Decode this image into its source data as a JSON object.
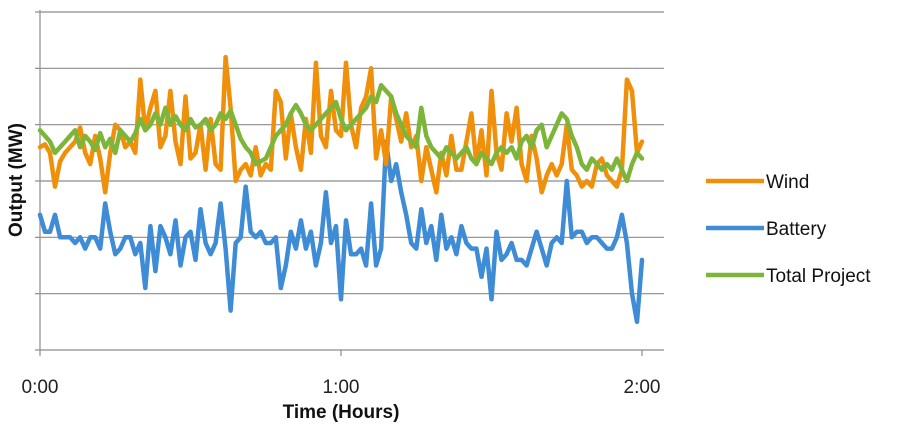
{
  "chart_data": {
    "type": "line",
    "xlabel": "Time (Hours)",
    "ylabel": "Output (MW)",
    "x_range_minutes": [
      0,
      120
    ],
    "x_ticks": [
      {
        "minute": 0,
        "label": "0:00"
      },
      {
        "minute": 60,
        "label": "1:00"
      },
      {
        "minute": 120,
        "label": "2:00"
      }
    ],
    "ylim": [
      0,
      6
    ],
    "y_gridlines": [
      1,
      2,
      3,
      4,
      5,
      6
    ],
    "y_tick_labels_shown": false,
    "grid": true,
    "legend_position": "right",
    "series": [
      {
        "name": "Wind",
        "color": "#F0900A",
        "x": [
          0,
          1,
          2,
          3,
          4,
          5,
          6,
          7,
          8,
          9,
          10,
          11,
          12,
          13,
          14,
          15,
          16,
          17,
          18,
          19,
          20,
          21,
          22,
          23,
          24,
          25,
          26,
          27,
          28,
          29,
          30,
          31,
          32,
          33,
          34,
          35,
          36,
          37,
          38,
          39,
          40,
          41,
          42,
          43,
          44,
          45,
          46,
          47,
          48,
          49,
          50,
          51,
          52,
          53,
          54,
          55,
          56,
          57,
          58,
          59,
          60,
          61,
          62,
          63,
          64,
          65,
          66,
          67,
          68,
          69,
          70,
          71,
          72,
          73,
          74,
          75,
          76,
          77,
          78,
          79,
          80,
          81,
          82,
          83,
          84,
          85,
          86,
          87,
          88,
          89,
          90,
          91,
          92,
          93,
          94,
          95,
          96,
          97,
          98,
          99,
          100,
          101,
          102,
          103,
          104,
          105,
          106,
          107,
          108,
          109,
          110,
          111,
          112,
          113,
          114,
          115,
          116,
          117,
          118,
          119,
          120
        ],
        "values": [
          3.6,
          3.65,
          3.5,
          2.9,
          3.35,
          3.5,
          3.6,
          3.7,
          3.95,
          3.5,
          3.3,
          3.8,
          3.4,
          2.8,
          3.5,
          4.0,
          3.9,
          3.6,
          3.7,
          3.5,
          4.8,
          3.9,
          4.3,
          4.6,
          3.6,
          3.8,
          4.6,
          3.7,
          3.3,
          4.5,
          3.4,
          3.5,
          4.0,
          3.2,
          4.1,
          3.3,
          3.2,
          5.2,
          4.3,
          3.0,
          3.2,
          3.3,
          3.1,
          3.6,
          3.1,
          3.3,
          3.2,
          4.6,
          4.4,
          3.4,
          4.2,
          3.6,
          3.2,
          4.1,
          3.5,
          5.1,
          3.8,
          3.6,
          4.6,
          3.9,
          3.8,
          5.1,
          4.0,
          3.6,
          4.3,
          4.5,
          5.0,
          3.4,
          3.9,
          3.3,
          4.5,
          4.1,
          3.7,
          4.2,
          3.6,
          3.8,
          3.0,
          3.6,
          3.2,
          2.8,
          3.5,
          3.1,
          3.8,
          3.2,
          3.2,
          3.7,
          4.2,
          3.3,
          3.9,
          3.1,
          4.6,
          3.5,
          3.2,
          4.2,
          3.7,
          4.3,
          3.3,
          3.0,
          3.8,
          3.4,
          2.8,
          3.1,
          3.3,
          3.1,
          3.3,
          4.0,
          3.2,
          3.1,
          2.9,
          3.0,
          2.9,
          3.3,
          3.4,
          3.1,
          3.0,
          2.9,
          3.2,
          4.8,
          4.6,
          3.5,
          3.7
        ]
      },
      {
        "name": "Battery",
        "color": "#3E8BD6",
        "x": [
          0,
          1,
          2,
          3,
          4,
          5,
          6,
          7,
          8,
          9,
          10,
          11,
          12,
          13,
          14,
          15,
          16,
          17,
          18,
          19,
          20,
          21,
          22,
          23,
          24,
          25,
          26,
          27,
          28,
          29,
          30,
          31,
          32,
          33,
          34,
          35,
          36,
          37,
          38,
          39,
          40,
          41,
          42,
          43,
          44,
          45,
          46,
          47,
          48,
          49,
          50,
          51,
          52,
          53,
          54,
          55,
          56,
          57,
          58,
          59,
          60,
          61,
          62,
          63,
          64,
          65,
          66,
          67,
          68,
          69,
          70,
          71,
          72,
          73,
          74,
          75,
          76,
          77,
          78,
          79,
          80,
          81,
          82,
          83,
          84,
          85,
          86,
          87,
          88,
          89,
          90,
          91,
          92,
          93,
          94,
          95,
          96,
          97,
          98,
          99,
          100,
          101,
          102,
          103,
          104,
          105,
          106,
          107,
          108,
          109,
          110,
          111,
          112,
          113,
          114,
          115,
          116,
          117,
          118,
          119,
          120
        ],
        "values": [
          2.4,
          2.1,
          2.1,
          2.4,
          2.0,
          2.0,
          2.0,
          1.9,
          2.0,
          1.8,
          2.0,
          2.0,
          1.8,
          2.6,
          2.1,
          1.7,
          1.8,
          2.0,
          2.0,
          1.7,
          1.9,
          1.1,
          2.2,
          1.4,
          2.2,
          2.0,
          1.7,
          2.3,
          1.5,
          2.0,
          2.1,
          1.6,
          2.5,
          1.9,
          1.7,
          1.9,
          2.6,
          1.8,
          0.7,
          1.9,
          2.0,
          2.9,
          2.1,
          2.0,
          2.1,
          1.9,
          1.9,
          2.0,
          1.1,
          1.5,
          2.1,
          1.8,
          2.3,
          1.8,
          2.1,
          1.5,
          1.9,
          2.8,
          1.9,
          2.2,
          0.9,
          2.3,
          1.7,
          1.7,
          1.8,
          1.5,
          2.6,
          1.5,
          1.8,
          3.7,
          3.0,
          3.3,
          2.8,
          2.4,
          1.9,
          1.8,
          2.5,
          1.9,
          2.2,
          1.6,
          2.4,
          1.8,
          2.0,
          1.7,
          2.2,
          1.9,
          1.8,
          1.8,
          1.3,
          1.8,
          0.9,
          2.1,
          1.6,
          1.7,
          1.9,
          1.6,
          1.6,
          1.5,
          1.8,
          2.1,
          1.8,
          1.5,
          1.9,
          2.0,
          1.9,
          3.0,
          2.0,
          2.1,
          2.1,
          1.9,
          2.0,
          2.0,
          1.9,
          1.8,
          1.8,
          2.0,
          2.4,
          1.9,
          1.0,
          0.5,
          1.6
        ]
      },
      {
        "name": "Total Project",
        "color": "#7DB53A",
        "x": [
          0,
          1,
          2,
          3,
          4,
          5,
          6,
          7,
          8,
          9,
          10,
          11,
          12,
          13,
          14,
          15,
          16,
          17,
          18,
          19,
          20,
          21,
          22,
          23,
          24,
          25,
          26,
          27,
          28,
          29,
          30,
          31,
          32,
          33,
          34,
          35,
          36,
          37,
          38,
          39,
          40,
          41,
          42,
          43,
          44,
          45,
          46,
          47,
          48,
          49,
          50,
          51,
          52,
          53,
          54,
          55,
          56,
          57,
          58,
          59,
          60,
          61,
          62,
          63,
          64,
          65,
          66,
          67,
          68,
          69,
          70,
          71,
          72,
          73,
          74,
          75,
          76,
          77,
          78,
          79,
          80,
          81,
          82,
          83,
          84,
          85,
          86,
          87,
          88,
          89,
          90,
          91,
          92,
          93,
          94,
          95,
          96,
          97,
          98,
          99,
          100,
          101,
          102,
          103,
          104,
          105,
          106,
          107,
          108,
          109,
          110,
          111,
          112,
          113,
          114,
          115,
          116,
          117,
          118,
          119,
          120
        ],
        "values": [
          3.9,
          3.8,
          3.7,
          3.5,
          3.6,
          3.7,
          3.8,
          3.9,
          3.6,
          3.8,
          3.7,
          3.55,
          3.85,
          3.6,
          3.75,
          3.5,
          3.9,
          3.8,
          3.7,
          3.85,
          4.1,
          3.9,
          4.0,
          4.2,
          4.0,
          4.3,
          4.0,
          4.15,
          4.0,
          3.9,
          4.1,
          3.95,
          4.0,
          4.1,
          3.9,
          4.0,
          4.2,
          4.1,
          4.25,
          4.0,
          3.75,
          3.6,
          3.5,
          3.3,
          3.35,
          3.4,
          3.6,
          3.8,
          3.9,
          4.0,
          4.2,
          4.35,
          4.2,
          4.0,
          3.9,
          4.0,
          4.1,
          4.2,
          4.3,
          4.4,
          4.1,
          3.9,
          4.0,
          4.1,
          4.2,
          4.3,
          4.5,
          4.4,
          4.7,
          4.6,
          4.5,
          4.2,
          4.0,
          3.8,
          3.7,
          3.6,
          4.3,
          3.8,
          3.6,
          3.5,
          3.4,
          3.6,
          3.5,
          3.4,
          3.5,
          3.6,
          3.4,
          3.3,
          3.5,
          3.4,
          3.3,
          3.5,
          3.6,
          3.5,
          3.6,
          3.4,
          3.7,
          3.8,
          3.6,
          3.9,
          4.0,
          3.6,
          3.8,
          4.0,
          4.2,
          4.1,
          3.8,
          3.6,
          3.3,
          3.2,
          3.4,
          3.3,
          3.2,
          3.3,
          3.2,
          3.4,
          3.2,
          3.0,
          3.3,
          3.5,
          3.4
        ]
      }
    ]
  }
}
